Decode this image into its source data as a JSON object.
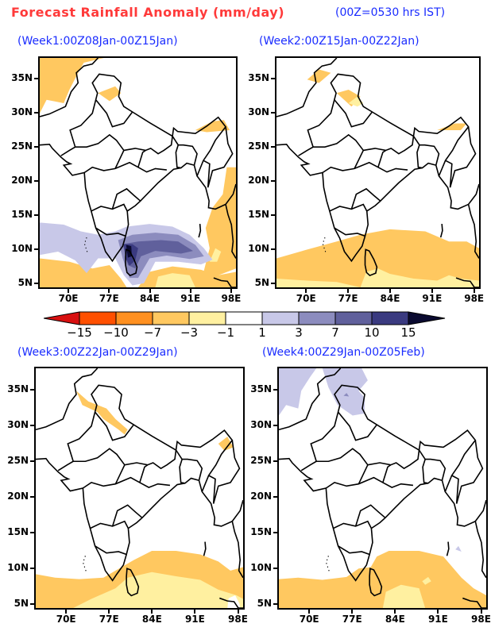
{
  "header": {
    "title": "Forecast Rainfall Anomaly (mm/day)",
    "time_note": "(00Z=0530 hrs IST)"
  },
  "chart_data": {
    "type": "heatmap",
    "title": "Forecast Rainfall Anomaly (mm/day)",
    "units": "mm/day",
    "lon_ticks": [
      "70E",
      "77E",
      "84E",
      "91E",
      "98E"
    ],
    "lon_values": [
      70,
      77,
      84,
      91,
      98
    ],
    "lat_ticks": [
      "35N",
      "30N",
      "25N",
      "20N",
      "15N",
      "10N",
      "5N"
    ],
    "lat_values": [
      35,
      30,
      25,
      20,
      15,
      10,
      5
    ],
    "lon_range": [
      64.8,
      99.1
    ],
    "lat_range": [
      4.2,
      38.2
    ],
    "colorbar": {
      "levels": [
        "-15",
        "-10",
        "-7",
        "-3",
        "-1",
        "1",
        "3",
        "7",
        "10",
        "15"
      ],
      "colors": [
        "#d81010",
        "#ff5000",
        "#ff9020",
        "#ffc860",
        "#fff0a0",
        "#ffffff",
        "#c8c8e8",
        "#8c8cbe",
        "#60609c",
        "#3a3a80",
        "#0a0a30"
      ]
    },
    "panels": [
      {
        "title": "(Week1:00Z08Jan-00Z15Jan)",
        "summary": "strong positive anomaly (up to >15) over south Tamil Nadu, Sri Lanka and SW Bay of Bengal; weak negative over NW and Myanmar"
      },
      {
        "title": "(Week2:00Z15Jan-00Z22Jan)",
        "summary": "weak negative anomaly over south peninsula seas"
      },
      {
        "title": "(Week3:00Z22Jan-00Z29Jan)",
        "summary": "negative anomaly (-3 to -7) over southern seas"
      },
      {
        "title": "(Week4:00Z29Jan-00Z05Feb)",
        "summary": "weak negative south, weak positive over far north"
      }
    ]
  }
}
